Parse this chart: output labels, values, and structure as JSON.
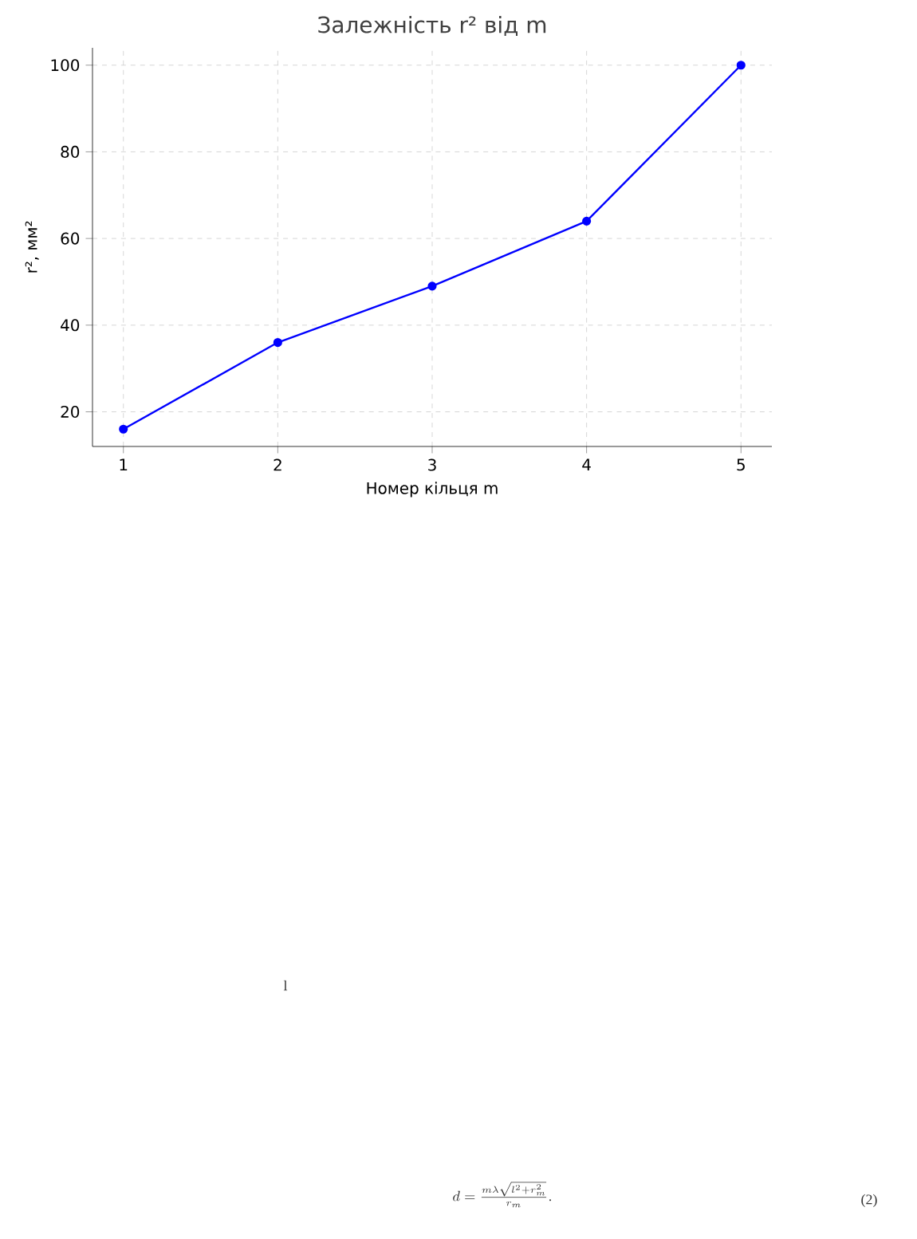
{
  "chart_data": {
    "type": "line",
    "title": "Залежність r² від m",
    "xlabel": "Номер кільця m",
    "ylabel": "r², мм²",
    "x": [
      1,
      2,
      3,
      4,
      5
    ],
    "series": [
      {
        "color": "#0000ff",
        "values": [
          16,
          36,
          49,
          64,
          100
        ]
      }
    ],
    "xlim": [
      0.8,
      5.2
    ],
    "xticks": [
      1,
      2,
      3,
      4,
      5
    ],
    "ylim": [
      12,
      104
    ],
    "yticks": [
      20,
      40,
      60,
      80,
      100
    ],
    "grid": true,
    "marker": "circle",
    "line_style": "solid",
    "annotations": [
      "l",
      "d=\\frac{m\\lambda\\sqrt{l^2+r_m^2}}{r_m}.",
      "(2)"
    ]
  }
}
